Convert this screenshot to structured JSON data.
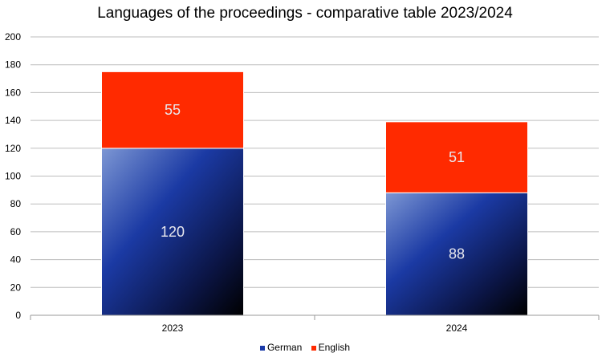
{
  "chart_data": {
    "type": "bar",
    "stacked": true,
    "title": "Languages of the proceedings - comparative table  2023/2024",
    "categories": [
      "2023",
      "2024"
    ],
    "series": [
      {
        "name": "German",
        "values": [
          120,
          88
        ],
        "color": "#1a3aa8"
      },
      {
        "name": "English",
        "values": [
          55,
          51
        ],
        "color": "#ff2a00"
      }
    ],
    "ylim": [
      0,
      200
    ],
    "yticks": [
      0,
      20,
      40,
      60,
      80,
      100,
      120,
      140,
      160,
      180,
      200
    ],
    "grid": true,
    "legend_position": "bottom"
  }
}
